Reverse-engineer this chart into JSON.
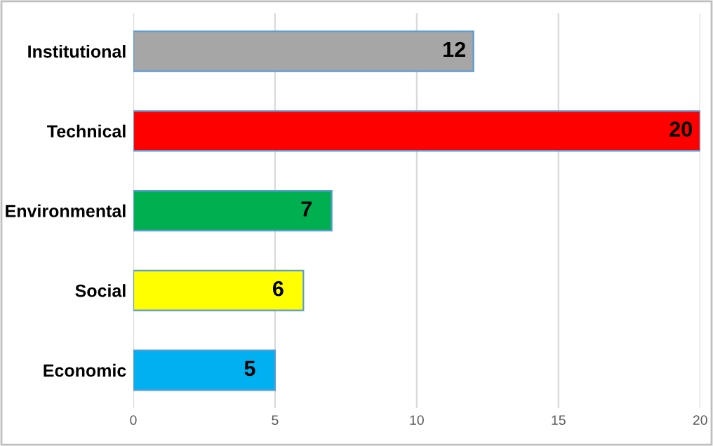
{
  "chart_data": {
    "type": "bar",
    "orientation": "horizontal",
    "categories": [
      "Institutional",
      "Technical",
      "Environmental",
      "Social",
      "Economic"
    ],
    "values": [
      12,
      20,
      7,
      6,
      5
    ],
    "colors": [
      "#a6a6a6",
      "#ff0000",
      "#00b050",
      "#ffff00",
      "#00b0f0"
    ],
    "xlim": [
      0,
      20
    ],
    "xticks": [
      0,
      5,
      10,
      15,
      20
    ],
    "grid": "x",
    "data_labels": true,
    "legend": false
  }
}
